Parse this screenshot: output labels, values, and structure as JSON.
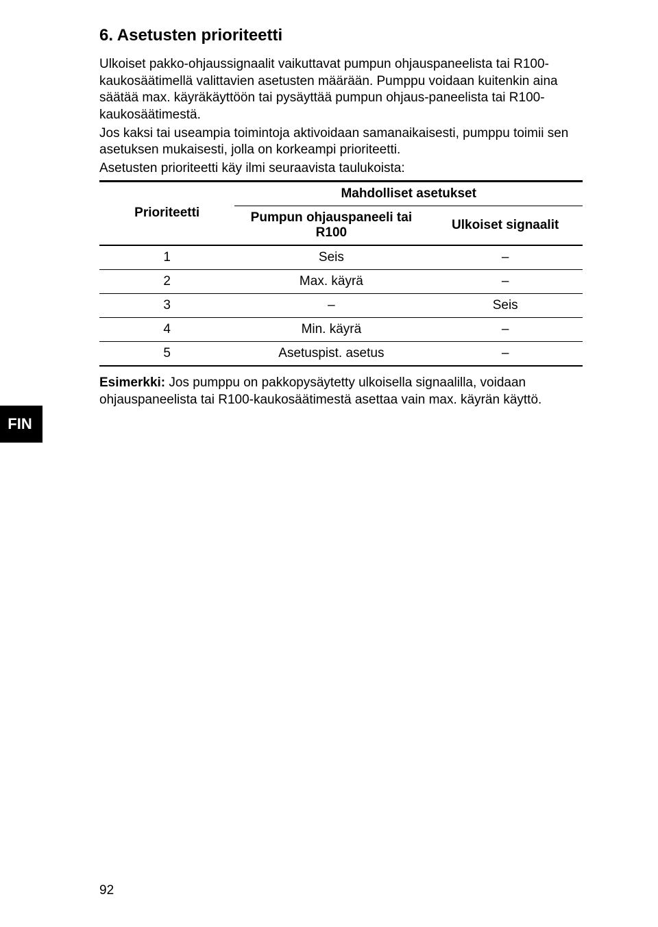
{
  "heading": "6. Asetusten prioriteetti",
  "paragraphs": {
    "p1": "Ulkoiset pakko-ohjaussignaalit vaikuttavat pumpun ohjauspaneelista tai R100-kaukosäätimellä valittavien asetusten määrään. Pumppu voidaan kuitenkin aina säätää max. käyräkäyttöön tai pysäyttää pumpun ohjaus-paneelista tai R100-kaukosäätimestä.",
    "p2": "Jos kaksi tai useampia toimintoja aktivoidaan samanaikaisesti, pumppu toimii sen asetuksen mukaisesti, jolla on korkeampi prioriteetti.",
    "p3": "Asetusten prioriteetti käy ilmi seuraavista taulukoista:"
  },
  "table": {
    "header": {
      "priority": "Prioriteetti",
      "possible_settings": "Mahdolliset asetukset",
      "panel": "Pumpun ohjauspaneeli tai R100",
      "external": "Ulkoiset signaalit"
    },
    "rows": [
      {
        "priority": "1",
        "panel": "Seis",
        "external": "–"
      },
      {
        "priority": "2",
        "panel": "Max. käyrä",
        "external": "–"
      },
      {
        "priority": "3",
        "panel": "–",
        "external": "Seis"
      },
      {
        "priority": "4",
        "panel": "Min. käyrä",
        "external": "–"
      },
      {
        "priority": "5",
        "panel": "Asetuspist. asetus",
        "external": "–"
      }
    ]
  },
  "example": {
    "label": "Esimerkki:",
    "text": " Jos pumppu on pakkopysäytetty ulkoisella signaalilla, voidaan ohjauspaneelista tai R100-kaukosäätimestä asettaa vain max. käyrän käyttö."
  },
  "lang_tab": "FIN",
  "page_number": "92"
}
